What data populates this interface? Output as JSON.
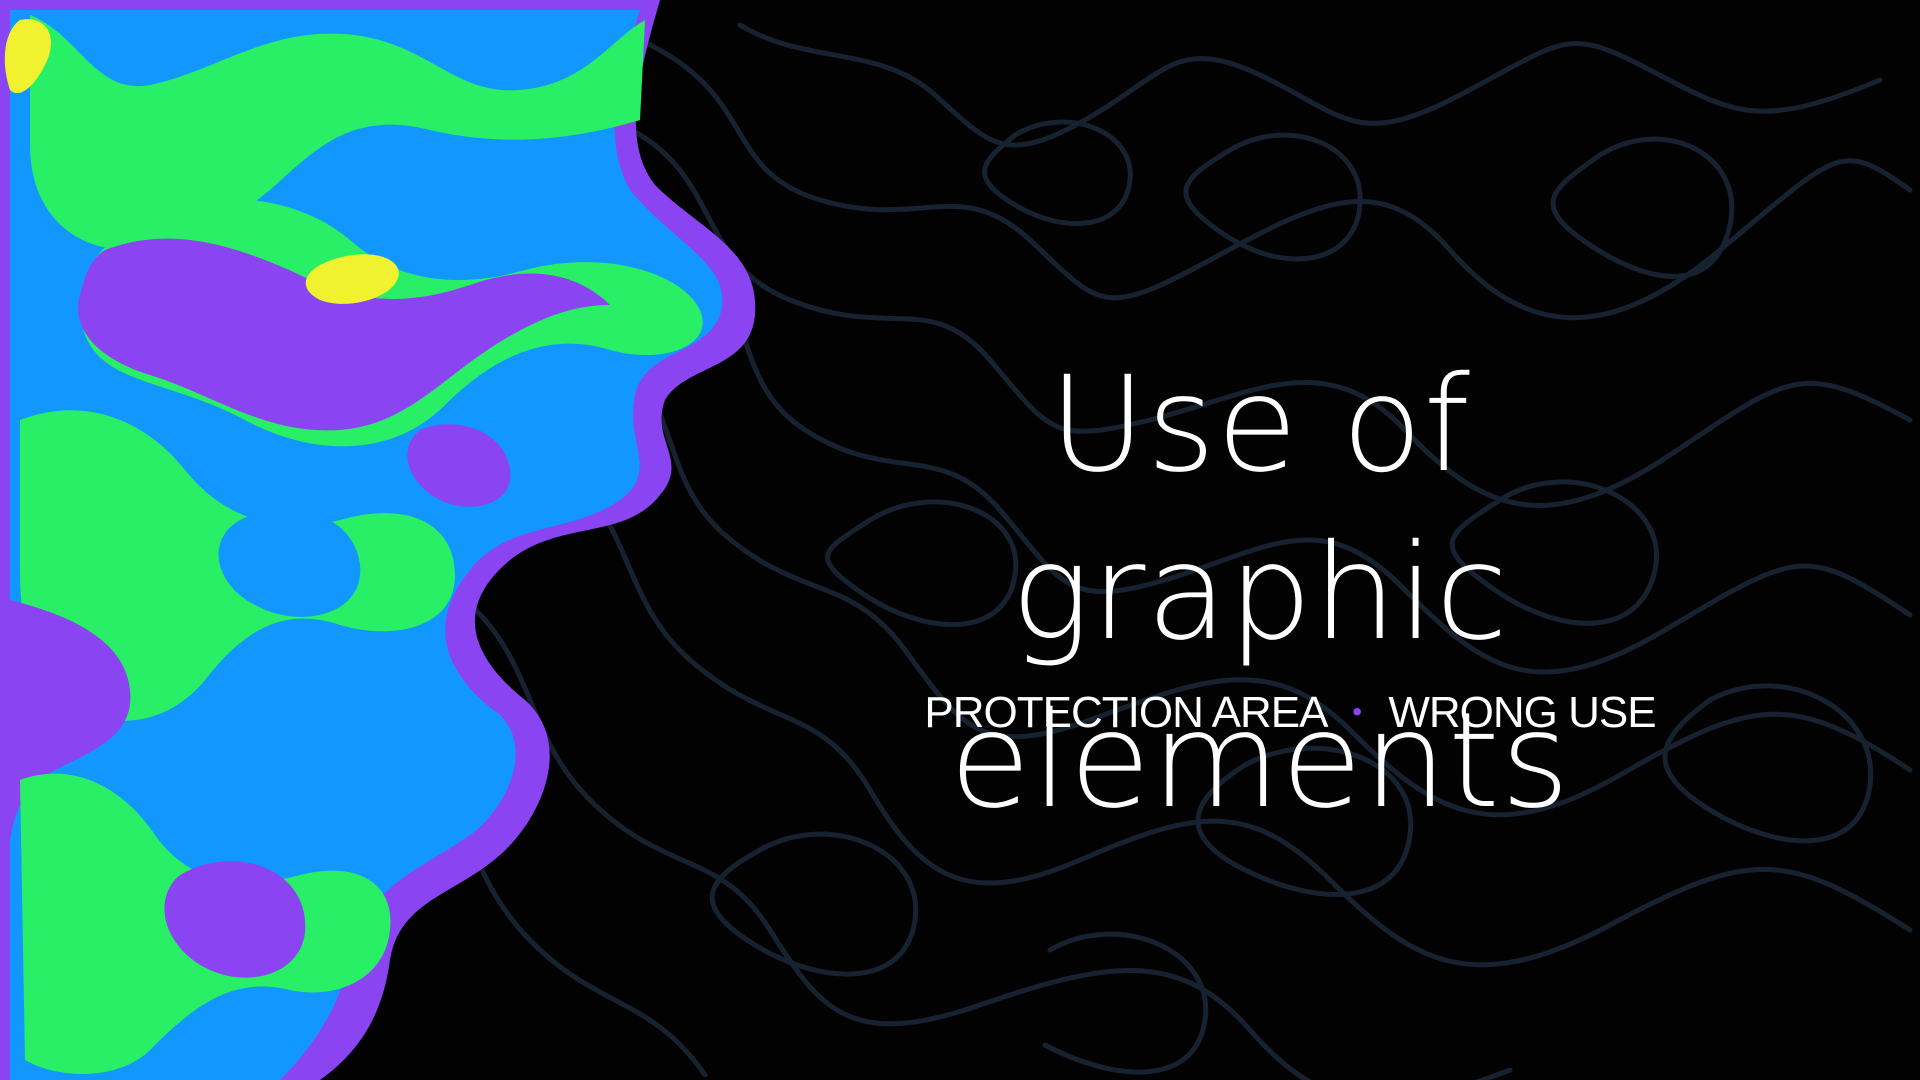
{
  "slide": {
    "title_line_1": "Use of",
    "title_line_2": "graphic elements",
    "subtitle_left": "PROTECTION AREA",
    "subtitle_separator": "•",
    "subtitle_right": "WRONG USE"
  },
  "colors": {
    "background": "#020202",
    "contours": "#172230",
    "purple": "#8b44f2",
    "blue": "#1297ff",
    "green": "#28ef65",
    "yellow": "#f1f22f",
    "text": "#ffffff"
  }
}
